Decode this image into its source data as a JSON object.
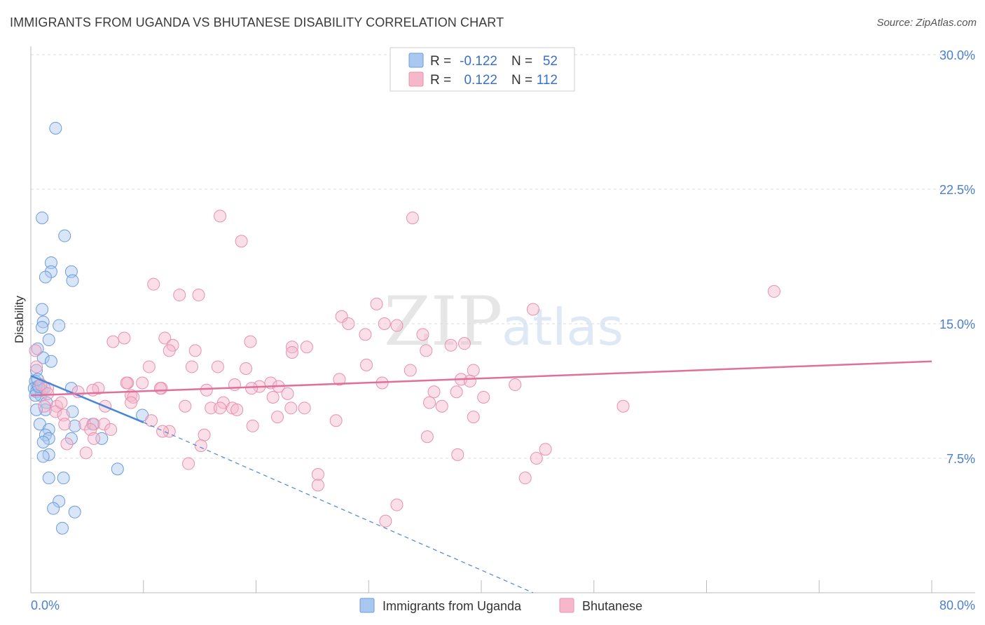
{
  "header": {
    "title": "IMMIGRANTS FROM UGANDA VS BHUTANESE DISABILITY CORRELATION CHART",
    "source": "Source: ZipAtlas.com"
  },
  "watermark": {
    "zip": "ZIP",
    "atlas": "atlas"
  },
  "legend": {
    "rows": [
      {
        "r_label": "R =",
        "r_value": "-0.122",
        "n_label": "N =",
        "n_value": "52",
        "color": "#a9c8f0"
      },
      {
        "r_label": "R =",
        "r_value": "0.122",
        "n_label": "N =",
        "n_value": "112",
        "color": "#f5b8cb"
      }
    ]
  },
  "bottom_legend": {
    "items": [
      {
        "label": "Immigrants from Uganda",
        "color": "#a9c8f0"
      },
      {
        "label": "Bhutanese",
        "color": "#f5b8cb"
      }
    ]
  },
  "chart_data": {
    "type": "scatter",
    "title": "IMMIGRANTS FROM UGANDA VS BHUTANESE DISABILITY CORRELATION CHART",
    "xlabel": "",
    "ylabel": "Disability",
    "xlim": [
      0,
      80
    ],
    "ylim": [
      0,
      30
    ],
    "x_tick_labels": [
      "0.0%",
      "80.0%"
    ],
    "y_ticks": [
      7.5,
      15.0,
      22.5,
      30.0
    ],
    "y_tick_labels": [
      "7.5%",
      "15.0%",
      "22.5%",
      "30.0%"
    ],
    "grid": true,
    "legend_position": "top-center",
    "colors": {
      "uganda": "#4a86d8",
      "uganda_fill": "#a9c8f0",
      "bhutanese": "#e0709a",
      "bhutanese_fill": "#f5b8cb",
      "axis_text": "#4a7fd0"
    },
    "series": [
      {
        "name": "Immigrants from Uganda",
        "points": [
          [
            2.2,
            25.9
          ],
          [
            1.0,
            20.9
          ],
          [
            3.0,
            19.9
          ],
          [
            1.8,
            18.4
          ],
          [
            1.8,
            17.9
          ],
          [
            1.3,
            17.6
          ],
          [
            3.6,
            17.9
          ],
          [
            3.7,
            17.4
          ],
          [
            1.0,
            15.8
          ],
          [
            1.1,
            15.1
          ],
          [
            1.0,
            14.8
          ],
          [
            2.5,
            14.9
          ],
          [
            1.6,
            14.1
          ],
          [
            0.6,
            13.6
          ],
          [
            1.1,
            13.1
          ],
          [
            1.8,
            12.9
          ],
          [
            0.5,
            12.4
          ],
          [
            0.4,
            11.8
          ],
          [
            0.6,
            11.5
          ],
          [
            0.8,
            11.4
          ],
          [
            1.0,
            11.3
          ],
          [
            0.3,
            11.4
          ],
          [
            0.5,
            11.2
          ],
          [
            0.9,
            11.0
          ],
          [
            0.4,
            11.0
          ],
          [
            1.2,
            11.4
          ],
          [
            0.7,
            11.5
          ],
          [
            3.6,
            11.4
          ],
          [
            1.4,
            10.6
          ],
          [
            1.3,
            10.2
          ],
          [
            0.5,
            10.2
          ],
          [
            3.7,
            10.1
          ],
          [
            9.9,
            9.9
          ],
          [
            0.8,
            9.4
          ],
          [
            1.6,
            9.1
          ],
          [
            1.3,
            8.8
          ],
          [
            3.9,
            9.3
          ],
          [
            5.5,
            9.4
          ],
          [
            1.6,
            8.6
          ],
          [
            3.6,
            8.6
          ],
          [
            6.3,
            8.6
          ],
          [
            1.1,
            8.4
          ],
          [
            1.6,
            7.7
          ],
          [
            1.1,
            7.6
          ],
          [
            7.7,
            6.9
          ],
          [
            1.6,
            6.4
          ],
          [
            2.9,
            6.4
          ],
          [
            2.5,
            5.1
          ],
          [
            2.0,
            4.7
          ],
          [
            3.9,
            4.5
          ],
          [
            2.8,
            3.6
          ],
          [
            0.6,
            11.9
          ]
        ]
      },
      {
        "name": "Bhutanese",
        "points": [
          [
            16.8,
            21.0
          ],
          [
            33.9,
            20.9
          ],
          [
            18.7,
            19.6
          ],
          [
            66.0,
            16.8
          ],
          [
            10.9,
            17.2
          ],
          [
            13.2,
            16.6
          ],
          [
            14.9,
            16.6
          ],
          [
            30.7,
            16.1
          ],
          [
            44.6,
            15.8
          ],
          [
            27.6,
            15.4
          ],
          [
            28.2,
            15.0
          ],
          [
            31.4,
            15.0
          ],
          [
            32.5,
            14.9
          ],
          [
            29.7,
            14.4
          ],
          [
            34.8,
            14.4
          ],
          [
            8.3,
            14.2
          ],
          [
            11.9,
            14.2
          ],
          [
            19.5,
            14.0
          ],
          [
            7.3,
            14.0
          ],
          [
            12.6,
            13.8
          ],
          [
            12.3,
            13.5
          ],
          [
            14.6,
            13.5
          ],
          [
            23.2,
            13.7
          ],
          [
            24.5,
            13.7
          ],
          [
            23.2,
            13.4
          ],
          [
            37.3,
            13.8
          ],
          [
            38.5,
            13.9
          ],
          [
            35.1,
            13.5
          ],
          [
            29.8,
            12.7
          ],
          [
            10.5,
            12.6
          ],
          [
            14.3,
            12.6
          ],
          [
            16.6,
            12.6
          ],
          [
            19.1,
            12.5
          ],
          [
            33.7,
            12.4
          ],
          [
            39.3,
            12.4
          ],
          [
            38.2,
            11.9
          ],
          [
            18.1,
            11.6
          ],
          [
            21.3,
            11.7
          ],
          [
            31.2,
            11.7
          ],
          [
            27.4,
            11.9
          ],
          [
            39.0,
            11.8
          ],
          [
            43.0,
            11.6
          ],
          [
            20.3,
            11.5
          ],
          [
            22.0,
            11.5
          ],
          [
            19.6,
            11.4
          ],
          [
            15.6,
            11.3
          ],
          [
            11.6,
            11.4
          ],
          [
            8.6,
            11.7
          ],
          [
            9.9,
            11.7
          ],
          [
            6.0,
            11.4
          ],
          [
            5.5,
            11.3
          ],
          [
            4.2,
            11.2
          ],
          [
            0.5,
            12.6
          ],
          [
            0.4,
            13.5
          ],
          [
            1.5,
            11.4
          ],
          [
            8.9,
            11.0
          ],
          [
            9.1,
            10.9
          ],
          [
            22.8,
            11.1
          ],
          [
            21.5,
            10.9
          ],
          [
            35.8,
            11.2
          ],
          [
            37.8,
            11.2
          ],
          [
            40.2,
            10.9
          ],
          [
            17.1,
            10.6
          ],
          [
            13.7,
            10.4
          ],
          [
            16.0,
            10.3
          ],
          [
            17.9,
            10.3
          ],
          [
            16.8,
            10.3
          ],
          [
            23.1,
            10.3
          ],
          [
            24.3,
            10.3
          ],
          [
            35.4,
            10.6
          ],
          [
            36.5,
            10.4
          ],
          [
            52.6,
            10.4
          ],
          [
            8.9,
            10.6
          ],
          [
            6.6,
            10.4
          ],
          [
            2.3,
            10.4
          ],
          [
            2.2,
            10.1
          ],
          [
            2.9,
            9.9
          ],
          [
            3.0,
            9.4
          ],
          [
            21.9,
            9.8
          ],
          [
            27.1,
            9.6
          ],
          [
            39.3,
            9.8
          ],
          [
            4.8,
            9.4
          ],
          [
            5.6,
            9.4
          ],
          [
            6.5,
            9.4
          ],
          [
            7.1,
            9.1
          ],
          [
            10.7,
            9.6
          ],
          [
            12.3,
            9.0
          ],
          [
            11.7,
            9.0
          ],
          [
            19.7,
            9.3
          ],
          [
            5.3,
            9.1
          ],
          [
            15.4,
            8.8
          ],
          [
            35.2,
            8.7
          ],
          [
            5.6,
            8.6
          ],
          [
            3.2,
            8.3
          ],
          [
            15.1,
            8.2
          ],
          [
            4.9,
            7.8
          ],
          [
            45.7,
            8.0
          ],
          [
            44.9,
            7.5
          ],
          [
            37.9,
            7.7
          ],
          [
            14.0,
            7.2
          ],
          [
            25.5,
            6.6
          ],
          [
            25.5,
            6.0
          ],
          [
            43.9,
            6.4
          ],
          [
            32.5,
            4.9
          ],
          [
            31.5,
            4.0
          ],
          [
            1.2,
            10.4
          ],
          [
            2.7,
            10.6
          ],
          [
            0.9,
            11.6
          ],
          [
            1.5,
            11.1
          ],
          [
            8.5,
            11.7
          ],
          [
            11.5,
            11.4
          ],
          [
            18.3,
            10.2
          ]
        ]
      }
    ],
    "trend_lines": [
      {
        "series": "Immigrants from Uganda",
        "from": [
          0,
          12.1
        ],
        "to": [
          10.0,
          9.5
        ],
        "dashed_extension_to": [
          44.6,
          0.0
        ]
      },
      {
        "series": "Bhutanese",
        "from": [
          0,
          11.0
        ],
        "to": [
          80.0,
          12.9
        ]
      }
    ]
  }
}
